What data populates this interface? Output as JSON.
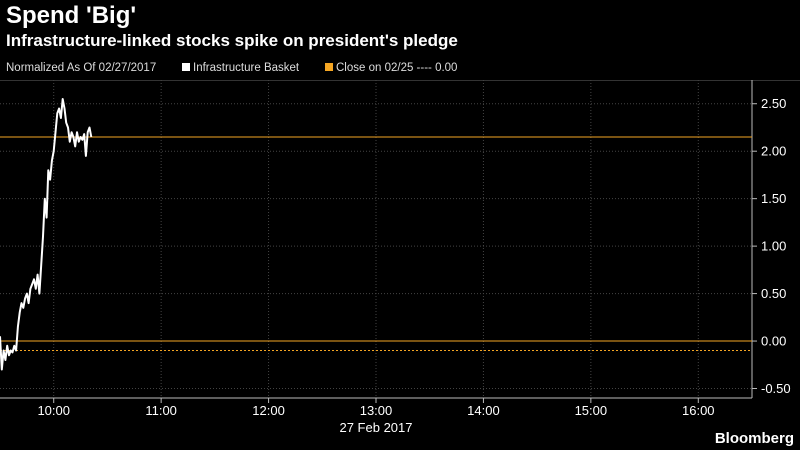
{
  "header": {
    "title": "Spend 'Big'",
    "subtitle": "Infrastructure-linked stocks spike on president's pledge"
  },
  "legend": {
    "normalized_label": "Normalized As Of 02/27/2017",
    "series_label": "Infrastructure Basket",
    "close_label": "Close on 02/25 ---- 0.00",
    "series_color": "#ffffff",
    "close_color": "#f5a623"
  },
  "footer": {
    "brand": "Bloomberg"
  },
  "chart_data": {
    "type": "line",
    "date_label": "27 Feb 2017",
    "xticks": [
      "10:00",
      "11:00",
      "12:00",
      "13:00",
      "14:00",
      "15:00",
      "16:00"
    ],
    "xlim": [
      "09:30",
      "16:30"
    ],
    "yticks": [
      "-0.50",
      "0.00",
      "0.50",
      "1.00",
      "1.50",
      "2.00",
      "2.50"
    ],
    "ylim": [
      -0.6,
      2.75
    ],
    "y_axis_side": "right",
    "grid": true,
    "series": [
      {
        "name": "Infrastructure Basket",
        "color": "#ffffff",
        "x": [
          "09:30",
          "09:31",
          "09:32",
          "09:33",
          "09:34",
          "09:35",
          "09:36",
          "09:37",
          "09:38",
          "09:39",
          "09:40",
          "09:41",
          "09:42",
          "09:43",
          "09:44",
          "09:45",
          "09:46",
          "09:47",
          "09:48",
          "09:49",
          "09:50",
          "09:51",
          "09:52",
          "09:53",
          "09:54",
          "09:55",
          "09:56",
          "09:57",
          "09:58",
          "09:59",
          "10:00",
          "10:01",
          "10:02",
          "10:03",
          "10:04",
          "10:05",
          "10:06",
          "10:07",
          "10:08",
          "10:09",
          "10:10",
          "10:11",
          "10:12",
          "10:13",
          "10:14",
          "10:15",
          "10:16",
          "10:17",
          "10:18",
          "10:19",
          "10:20",
          "10:21"
        ],
        "values": [
          0.05,
          -0.3,
          -0.1,
          -0.2,
          -0.05,
          -0.15,
          -0.1,
          -0.12,
          -0.05,
          -0.1,
          0.15,
          0.3,
          0.4,
          0.35,
          0.45,
          0.5,
          0.4,
          0.55,
          0.6,
          0.65,
          0.55,
          0.7,
          0.5,
          0.8,
          1.1,
          1.5,
          1.3,
          1.8,
          1.7,
          1.9,
          2.0,
          2.2,
          2.4,
          2.45,
          2.35,
          2.55,
          2.45,
          2.3,
          2.25,
          2.1,
          2.2,
          2.15,
          2.05,
          2.2,
          2.1,
          2.15,
          2.12,
          2.18,
          1.95,
          2.2,
          2.25,
          2.15
        ]
      }
    ],
    "reference_lines": [
      {
        "name": "Close on 02/25",
        "value": 0.0,
        "color": "#f5a623",
        "style": "solid"
      },
      {
        "name": "",
        "value": -0.1,
        "color": "#f5a623",
        "style": "dotted"
      },
      {
        "name": "",
        "value": 2.15,
        "color": "#f5a623",
        "style": "solid"
      }
    ]
  }
}
